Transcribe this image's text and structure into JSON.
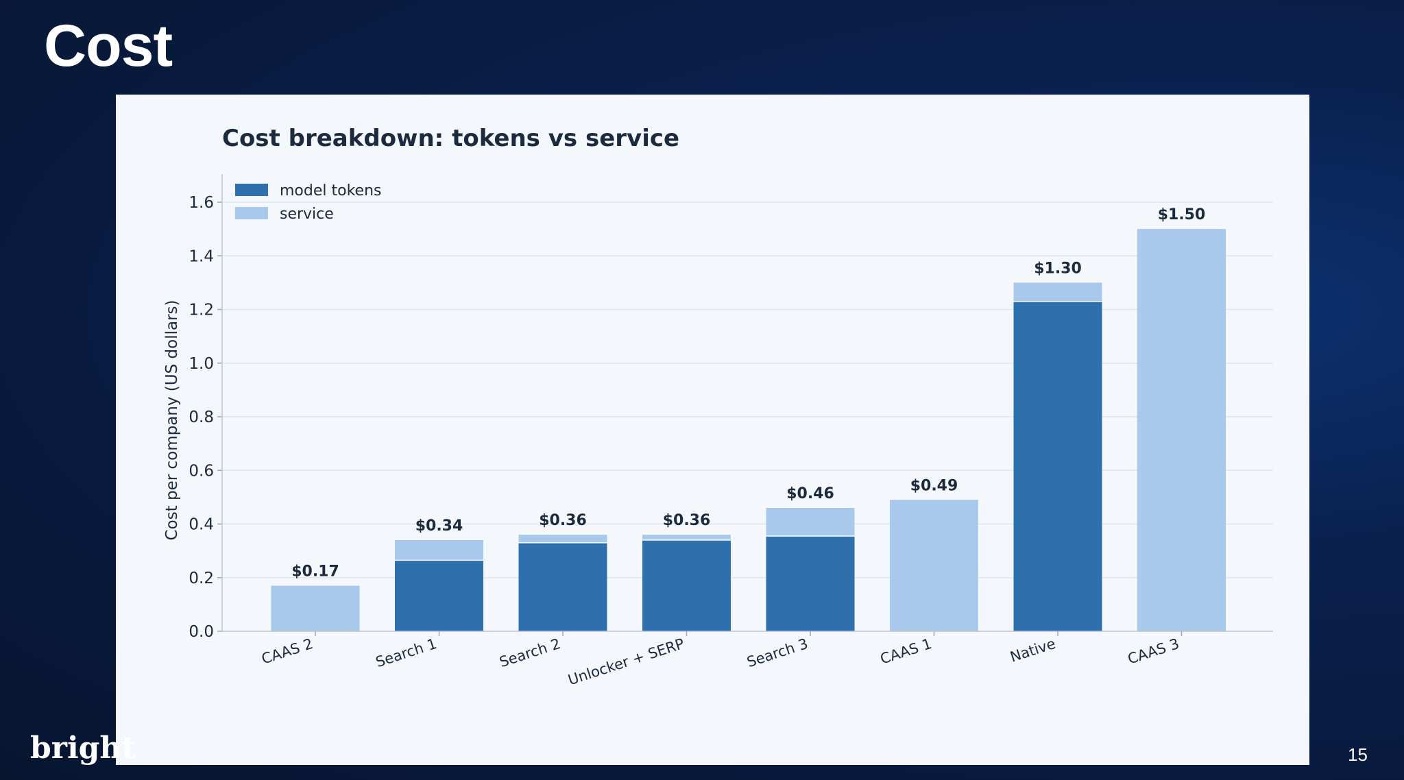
{
  "slide": {
    "title": "Cost",
    "logo": "bright",
    "page_number": "15"
  },
  "colors": {
    "model_tokens": "#2e6fad",
    "service": "#a9c9ec",
    "text": "#1c2a3e",
    "grid": "#dbe6f1"
  },
  "chart_data": {
    "type": "bar",
    "stacked": true,
    "title": "Cost breakdown: tokens vs service",
    "xlabel": "",
    "ylabel": "Cost per company (US dollars)",
    "ylim": [
      0,
      1.75
    ],
    "yticks": [
      "0.0",
      "0.2",
      "0.4",
      "0.6",
      "0.8",
      "1.0",
      "1.2",
      "1.4",
      "1.6"
    ],
    "grid": true,
    "legend_position": "top-left",
    "categories": [
      "CAAS 2",
      "Search 1",
      "Search 2",
      "Unlocker + SERP",
      "Search 3",
      "CAAS 1",
      "Native",
      "CAAS 3"
    ],
    "series": [
      {
        "name": "model tokens",
        "values": [
          0,
          0.265,
          0.33,
          0.34,
          0.355,
          0,
          1.23,
          0
        ]
      },
      {
        "name": "service",
        "values": [
          0.17,
          0.075,
          0.03,
          0.02,
          0.105,
          0.49,
          0.07,
          1.5
        ]
      }
    ],
    "totals": [
      "$0.17",
      "$0.34",
      "$0.36",
      "$0.36",
      "$0.46",
      "$0.49",
      "$1.30",
      "$1.50"
    ]
  }
}
